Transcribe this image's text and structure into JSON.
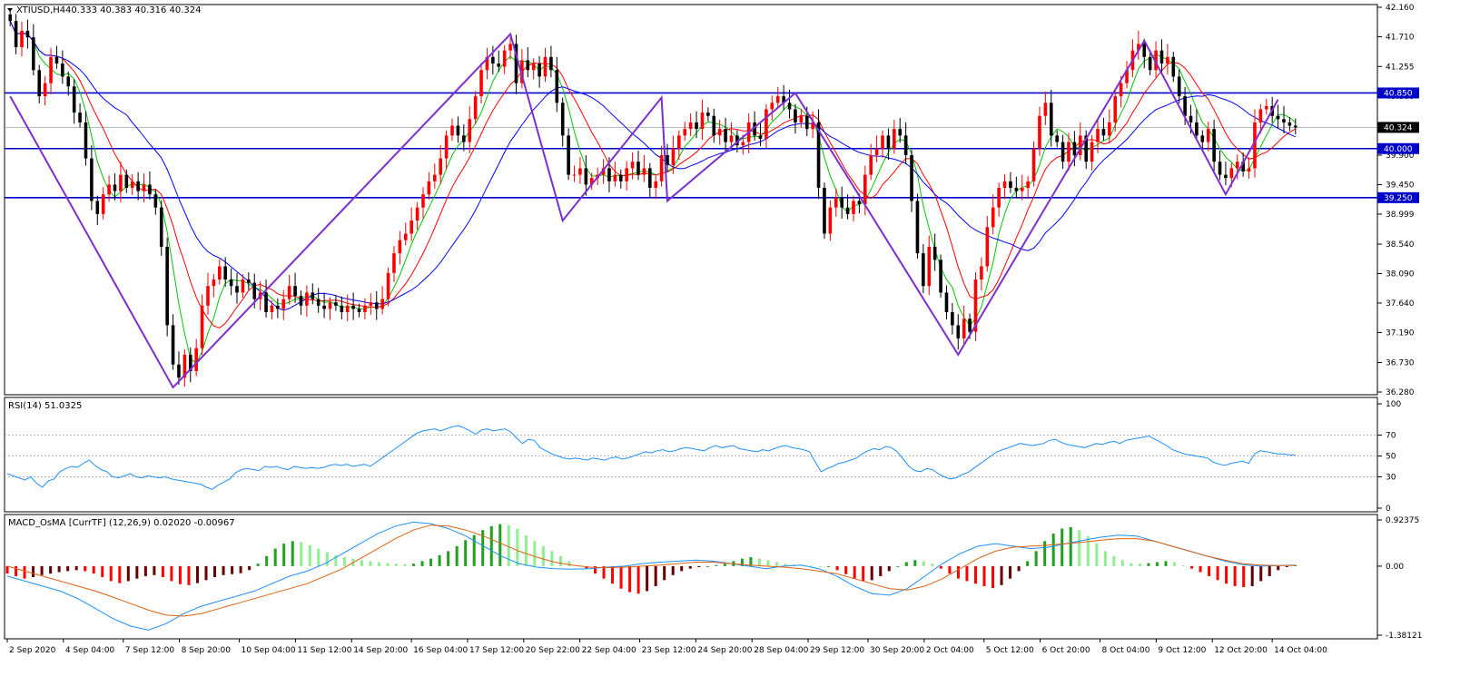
{
  "window": {
    "title": "XTIUSD,H4",
    "ohlc": "40.333 40.383 40.316 40.324"
  },
  "colors": {
    "bull": "#ff0000",
    "bear": "#000000",
    "zigzag": "#7b2fd0",
    "level": "#0000c8",
    "ma_fast": "#00c800",
    "ma_mid": "#ff0000",
    "ma_slow": "#0000ff",
    "rsi": "#1e90ff",
    "macd_line": "#1e90ff",
    "signal_line": "#e06010",
    "osma_up_strong": "#1fa01f",
    "osma_up_weak": "#90ee90",
    "osma_down_strong": "#ff0000",
    "osma_down_weak": "#660000",
    "label_bg": "#0000c8"
  },
  "chart_data": [
    {
      "type": "candlestick",
      "title": "XTIUSD,H4",
      "ylim": [
        36.28,
        42.16
      ],
      "yticks": [
        42.16,
        41.71,
        41.255,
        40.8,
        40.345,
        39.9,
        39.45,
        38.999,
        38.54,
        38.09,
        37.64,
        37.19,
        36.73,
        36.28
      ],
      "ytick_labels": [
        "42.160",
        "41.710",
        "41.255",
        "40.800",
        "40.345",
        "39.900",
        "39.450",
        "38.999",
        "38.540",
        "38.090",
        "37.640",
        "37.190",
        "36.730",
        "36.280"
      ],
      "horizontal_levels": [
        {
          "value": 40.85,
          "label": "40.850"
        },
        {
          "value": 40.0,
          "label": "40.000"
        },
        {
          "value": 39.25,
          "label": "39.250"
        }
      ],
      "current_price": {
        "value": 40.324,
        "label": "40.324"
      },
      "zigzag": [
        {
          "i": 0,
          "p": 40.8
        },
        {
          "i": 28,
          "p": 36.35
        },
        {
          "i": 86,
          "p": 41.75
        },
        {
          "i": 95,
          "p": 38.9
        },
        {
          "i": 112,
          "p": 40.78
        },
        {
          "i": 113,
          "p": 39.2
        },
        {
          "i": 135,
          "p": 40.85
        },
        {
          "i": 163,
          "p": 36.85
        },
        {
          "i": 195,
          "p": 41.65
        },
        {
          "i": 209,
          "p": 39.3
        },
        {
          "i": 218,
          "p": 40.75
        }
      ],
      "closes": [
        41.95,
        41.55,
        41.8,
        41.7,
        41.2,
        40.8,
        41.0,
        41.4,
        41.3,
        41.1,
        40.95,
        40.55,
        40.4,
        39.85,
        39.2,
        39.0,
        39.3,
        39.45,
        39.35,
        39.6,
        39.4,
        39.5,
        39.35,
        39.45,
        39.3,
        39.1,
        38.5,
        37.3,
        36.7,
        36.5,
        36.85,
        36.6,
        36.95,
        37.6,
        37.9,
        38.0,
        38.2,
        38.0,
        37.9,
        37.8,
        38.0,
        37.95,
        37.7,
        37.8,
        37.5,
        37.6,
        37.55,
        37.7,
        37.9,
        37.75,
        37.6,
        37.8,
        37.7,
        37.6,
        37.55,
        37.65,
        37.6,
        37.5,
        37.6,
        37.55,
        37.5,
        37.6,
        37.65,
        37.55,
        37.7,
        38.1,
        38.4,
        38.6,
        38.7,
        38.9,
        39.1,
        39.3,
        39.5,
        39.6,
        39.85,
        40.2,
        40.35,
        40.2,
        40.1,
        40.45,
        40.8,
        41.2,
        41.4,
        41.3,
        41.25,
        41.5,
        41.6,
        41.0,
        41.35,
        41.2,
        41.3,
        41.1,
        41.4,
        41.2,
        40.7,
        40.2,
        39.6,
        39.6,
        39.7,
        39.45,
        39.55,
        39.6,
        39.7,
        39.5,
        39.6,
        39.5,
        39.7,
        39.8,
        39.6,
        39.7,
        39.4,
        39.5,
        39.9,
        39.75,
        40.0,
        40.2,
        40.3,
        40.4,
        40.3,
        40.55,
        40.5,
        40.2,
        40.3,
        40.1,
        40.2,
        40.05,
        40.1,
        40.4,
        40.2,
        40.15,
        40.6,
        40.7,
        40.8,
        40.7,
        40.6,
        40.4,
        40.5,
        40.3,
        40.4,
        39.4,
        38.7,
        39.1,
        39.25,
        39.1,
        39.0,
        39.2,
        39.15,
        39.6,
        39.9,
        40.0,
        40.2,
        40.0,
        40.3,
        40.2,
        39.9,
        39.2,
        38.4,
        37.9,
        38.5,
        38.3,
        37.8,
        37.5,
        37.3,
        37.1,
        37.4,
        37.2,
        38.0,
        38.2,
        38.8,
        39.1,
        39.4,
        39.5,
        39.4,
        39.35,
        39.4,
        39.5,
        40.0,
        40.5,
        40.7,
        40.2,
        40.1,
        39.8,
        40.1,
        39.9,
        40.2,
        39.8,
        40.1,
        40.3,
        40.2,
        40.4,
        40.8,
        41.0,
        41.2,
        41.5,
        41.6,
        41.4,
        41.2,
        41.5,
        41.3,
        41.4,
        41.1,
        40.8,
        40.5,
        40.4,
        40.2,
        40.1,
        40.3,
        39.8,
        39.6,
        39.55,
        39.7,
        39.8,
        39.65,
        39.7,
        40.4,
        40.6,
        40.65,
        40.5,
        40.45,
        40.4,
        40.35,
        40.324
      ],
      "x_ticks": [
        {
          "label": "2 Sep 2020",
          "i": 0
        },
        {
          "label": "4 Sep 04:00",
          "i": 15
        },
        {
          "label": "7 Sep 12:00",
          "i": 31
        },
        {
          "label": "8 Sep 20:00",
          "i": 46
        },
        {
          "label": "10 Sep 04:00",
          "i": 62
        },
        {
          "label": "11 Sep 12:00",
          "i": 77
        },
        {
          "label": "14 Sep 20:00",
          "i": 92
        },
        {
          "label": "16 Sep 04:00",
          "i": 108
        },
        {
          "label": "17 Sep 12:00",
          "i": 123
        },
        {
          "label": "20 Sep 22:00",
          "i": 138
        },
        {
          "label": "22 Sep 04:00",
          "i": 153
        },
        {
          "label": "23 Sep 12:00",
          "i": 169
        },
        {
          "label": "24 Sep 20:00",
          "i": 184
        },
        {
          "label": "28 Sep 04:00",
          "i": 199
        },
        {
          "label": "29 Sep 12:00",
          "i": 214
        },
        {
          "label": "30 Sep 20:00",
          "i": 230
        },
        {
          "label": "2 Oct 04:00",
          "i": 245
        },
        {
          "label": "5 Oct 12:00",
          "i": 261
        },
        {
          "label": "6 Oct 20:00",
          "i": 276
        },
        {
          "label": "8 Oct 04:00",
          "i": 292
        },
        {
          "label": "9 Oct 12:00",
          "i": 307
        },
        {
          "label": "12 Oct 20:00",
          "i": 322
        },
        {
          "label": "14 Oct 04:00",
          "i": 338
        }
      ]
    },
    {
      "type": "line",
      "title": "RSI(14) 51.0325",
      "ylim": [
        0,
        100
      ],
      "yticks": [
        100,
        70,
        50,
        30,
        0
      ],
      "ytick_labels": [
        "100",
        "70",
        "50",
        "30",
        "0"
      ],
      "levels": [
        70,
        50,
        30
      ],
      "series": [
        {
          "name": "RSI(14)",
          "values": [
            33,
            31,
            29,
            27,
            30,
            24,
            20,
            26,
            28,
            35,
            38,
            40,
            39,
            43,
            46,
            41,
            37,
            35,
            30,
            29,
            31,
            33,
            30,
            29,
            31,
            30,
            29,
            30,
            28,
            27,
            26,
            25,
            24,
            23,
            20,
            18,
            22,
            25,
            28,
            34,
            37,
            38,
            37,
            36,
            40,
            39,
            40,
            38,
            37,
            40,
            39,
            38,
            39,
            38,
            39,
            41,
            42,
            41,
            42,
            40,
            41,
            42,
            40,
            44,
            48,
            52,
            56,
            60,
            64,
            68,
            72,
            74,
            75,
            76,
            74,
            76,
            78,
            79,
            77,
            74,
            71,
            75,
            76,
            74,
            75,
            76,
            73,
            67,
            62,
            66,
            65,
            58,
            55,
            52,
            50,
            48,
            47,
            48,
            47,
            46,
            48,
            47,
            46,
            48,
            49,
            47,
            48,
            50,
            52,
            54,
            53,
            55,
            56,
            54,
            55,
            57,
            58,
            57,
            56,
            55,
            58,
            60,
            58,
            59,
            60,
            57,
            56,
            55,
            54,
            56,
            55,
            57,
            59,
            60,
            58,
            57,
            56,
            54,
            44,
            35,
            38,
            40,
            43,
            44,
            46,
            48,
            52,
            55,
            57,
            56,
            59,
            58,
            54,
            47,
            40,
            36,
            35,
            38,
            37,
            33,
            30,
            28,
            29,
            32,
            34,
            38,
            42,
            46,
            50,
            54,
            56,
            58,
            60,
            62,
            61,
            60,
            61,
            62,
            65,
            66,
            63,
            61,
            60,
            59,
            58,
            60,
            62,
            61,
            63,
            64,
            62,
            65,
            66,
            67,
            68,
            69,
            66,
            63,
            60,
            56,
            54,
            52,
            51,
            50,
            49,
            48,
            44,
            42,
            41,
            43,
            44,
            45,
            43,
            52,
            55,
            54,
            53,
            52,
            52,
            51,
            51.0325
          ]
        }
      ]
    },
    {
      "type": "bar+line",
      "title": "MACD_OsMA [CurrTF] (12,26,9) 0.02020 -0.00967",
      "ylim": [
        -1.38121,
        0.92375
      ],
      "yticks": [
        0.92375,
        0.0,
        -1.38121
      ],
      "ytick_labels": [
        "0.92375",
        "0.00",
        "-1.38121"
      ],
      "series": [
        {
          "name": "OsMA",
          "values": [
            -0.15,
            -0.2,
            -0.25,
            -0.22,
            -0.18,
            -0.15,
            -0.12,
            -0.1,
            -0.08,
            -0.1,
            -0.15,
            -0.22,
            -0.3,
            -0.34,
            -0.3,
            -0.25,
            -0.2,
            -0.18,
            -0.22,
            -0.3,
            -0.36,
            -0.38,
            -0.34,
            -0.28,
            -0.22,
            -0.18,
            -0.16,
            -0.14,
            -0.08,
            0.05,
            0.2,
            0.35,
            0.45,
            0.5,
            0.48,
            0.42,
            0.35,
            0.28,
            0.22,
            0.18,
            0.15,
            0.12,
            0.1,
            0.08,
            0.06,
            0.05,
            0.04,
            0.05,
            0.1,
            0.15,
            0.22,
            0.3,
            0.4,
            0.52,
            0.62,
            0.72,
            0.8,
            0.84,
            0.82,
            0.75,
            0.62,
            0.5,
            0.4,
            0.3,
            0.2,
            0.1,
            0.02,
            -0.05,
            -0.15,
            -0.25,
            -0.35,
            -0.45,
            -0.52,
            -0.55,
            -0.5,
            -0.4,
            -0.28,
            -0.18,
            -0.1,
            -0.05,
            -0.02,
            0.0,
            0.02,
            0.05,
            0.1,
            0.15,
            0.18,
            0.15,
            0.12,
            0.08,
            0.05,
            0.03,
            0.02,
            0.01,
            0.0,
            0.0,
            -0.08,
            -0.16,
            -0.25,
            -0.3,
            -0.28,
            -0.2,
            -0.1,
            0.0,
            0.08,
            0.12,
            0.1,
            0.05,
            -0.05,
            -0.15,
            -0.25,
            -0.3,
            -0.35,
            -0.4,
            -0.44,
            -0.38,
            -0.25,
            -0.1,
            0.1,
            0.3,
            0.5,
            0.65,
            0.75,
            0.78,
            0.72,
            0.6,
            0.45,
            0.3,
            0.2,
            0.12,
            0.06,
            0.05,
            0.06,
            0.08,
            0.1,
            0.08,
            0.02,
            -0.05,
            -0.12,
            -0.2,
            -0.28,
            -0.35,
            -0.4,
            -0.42,
            -0.4,
            -0.3,
            -0.2,
            -0.08,
            -0.02,
            0.02
          ]
        },
        {
          "name": "MACD",
          "values": [
            -0.2,
            -0.3,
            -0.4,
            -0.5,
            -0.65,
            -0.85,
            -1.05,
            -1.2,
            -1.28,
            -1.15,
            -0.95,
            -0.8,
            -0.7,
            -0.6,
            -0.5,
            -0.35,
            -0.2,
            -0.1,
            0.05,
            0.25,
            0.45,
            0.65,
            0.8,
            0.88,
            0.85,
            0.75,
            0.6,
            0.4,
            0.2,
            0.05,
            -0.02,
            -0.05,
            -0.06,
            -0.05,
            -0.02,
            0.0,
            0.05,
            0.08,
            0.1,
            0.12,
            0.1,
            0.05,
            0.0,
            -0.05,
            0.0,
            0.02,
            -0.05,
            -0.2,
            -0.4,
            -0.55,
            -0.58,
            -0.45,
            -0.2,
            0.05,
            0.25,
            0.4,
            0.45,
            0.4,
            0.35,
            0.38,
            0.45,
            0.52,
            0.58,
            0.62,
            0.6,
            0.5,
            0.4,
            0.3,
            0.2,
            0.1,
            0.03,
            0.0,
            0.01,
            0.02
          ]
        },
        {
          "name": "Signal",
          "values": [
            0.0,
            -0.1,
            -0.2,
            -0.3,
            -0.4,
            -0.5,
            -0.62,
            -0.75,
            -0.88,
            -0.98,
            -1.0,
            -0.95,
            -0.85,
            -0.75,
            -0.65,
            -0.55,
            -0.45,
            -0.35,
            -0.2,
            -0.05,
            0.15,
            0.35,
            0.55,
            0.72,
            0.82,
            0.8,
            0.72,
            0.6,
            0.45,
            0.3,
            0.18,
            0.08,
            0.02,
            -0.02,
            -0.03,
            -0.02,
            0.0,
            0.02,
            0.05,
            0.08,
            0.08,
            0.05,
            0.02,
            0.0,
            -0.02,
            -0.05,
            -0.1,
            -0.15,
            -0.25,
            -0.35,
            -0.45,
            -0.48,
            -0.4,
            -0.25,
            -0.05,
            0.15,
            0.3,
            0.38,
            0.4,
            0.42,
            0.45,
            0.48,
            0.52,
            0.55,
            0.55,
            0.5,
            0.4,
            0.3,
            0.2,
            0.12,
            0.05,
            0.02,
            0.01,
            0.01
          ]
        }
      ]
    }
  ]
}
